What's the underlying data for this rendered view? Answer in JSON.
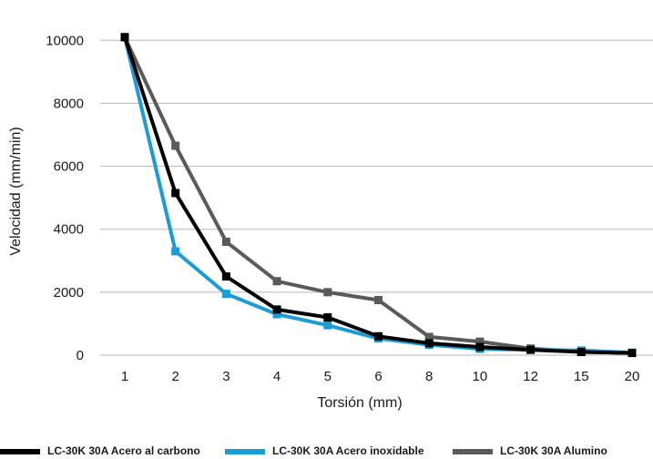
{
  "chart_data": {
    "type": "line",
    "xlabel": "Torsión (mm)",
    "ylabel": "Velocidad (mm/min)",
    "categories": [
      "1",
      "2",
      "3",
      "4",
      "5",
      "6",
      "8",
      "10",
      "12",
      "15",
      "20"
    ],
    "yticks": [
      "0",
      "2000",
      "4000",
      "6000",
      "8000",
      "10000"
    ],
    "ylim": [
      0,
      10500
    ],
    "grid": true,
    "legend_position": "bottom",
    "series": [
      {
        "name": "LC-30K 30A Alumino",
        "color": "#5a5a5a",
        "values": [
          10100,
          6650,
          3600,
          2350,
          2000,
          1750,
          580,
          430,
          210,
          110,
          70
        ]
      },
      {
        "name": "LC-30K 30A Acero inoxidable",
        "color": "#1a9cd8",
        "values": [
          10100,
          3300,
          1950,
          1300,
          950,
          530,
          330,
          200,
          170,
          150,
          80
        ]
      },
      {
        "name": "LC-30K 30A Acero al carbono",
        "color": "#000000",
        "values": [
          10100,
          5150,
          2500,
          1450,
          1200,
          600,
          380,
          260,
          170,
          100,
          70
        ]
      }
    ],
    "legend": [
      {
        "name": "LC-30K 30A Acero al carbono",
        "color": "#000000"
      },
      {
        "name": "LC-30K 30A Acero inoxidable",
        "color": "#1a9cd8"
      },
      {
        "name": "LC-30K 30A Alumino",
        "color": "#5a5a5a"
      }
    ]
  }
}
